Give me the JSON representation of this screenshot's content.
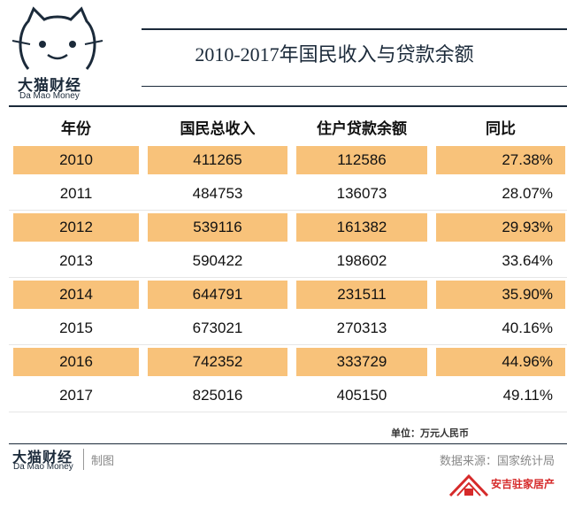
{
  "brand": {
    "name": "大猫财经",
    "sub": "Da Mao Money"
  },
  "title": "2010-2017年国民收入与贷款余额",
  "table": {
    "headers": [
      "年份",
      "国民总收入",
      "住户贷款余额",
      "同比"
    ],
    "rows": [
      {
        "year": "2010",
        "income": "411265",
        "loan": "112586",
        "yoy": "27.38%",
        "highlight": true
      },
      {
        "year": "2011",
        "income": "484753",
        "loan": "136073",
        "yoy": "28.07%",
        "highlight": false
      },
      {
        "year": "2012",
        "income": "539116",
        "loan": "161382",
        "yoy": "29.93%",
        "highlight": true
      },
      {
        "year": "2013",
        "income": "590422",
        "loan": "198602",
        "yoy": "33.64%",
        "highlight": false
      },
      {
        "year": "2014",
        "income": "644791",
        "loan": "231511",
        "yoy": "35.90%",
        "highlight": true
      },
      {
        "year": "2015",
        "income": "673021",
        "loan": "270313",
        "yoy": "40.16%",
        "highlight": false
      },
      {
        "year": "2016",
        "income": "742352",
        "loan": "333729",
        "yoy": "44.96%",
        "highlight": true
      },
      {
        "year": "2017",
        "income": "825016",
        "loan": "405150",
        "yoy": "49.11%",
        "highlight": false
      }
    ],
    "unit": "单位：万元人民币"
  },
  "footer": {
    "brand": "大猫财经",
    "brand_sub": "Da Mao Money",
    "credit": "制图",
    "source": "数据来源：国家统计局",
    "watermark": "安吉驻家居产"
  },
  "colors": {
    "highlight": "#f8c27a",
    "navy": "#1b2a3a",
    "watermark_red": "#d62a2a"
  }
}
